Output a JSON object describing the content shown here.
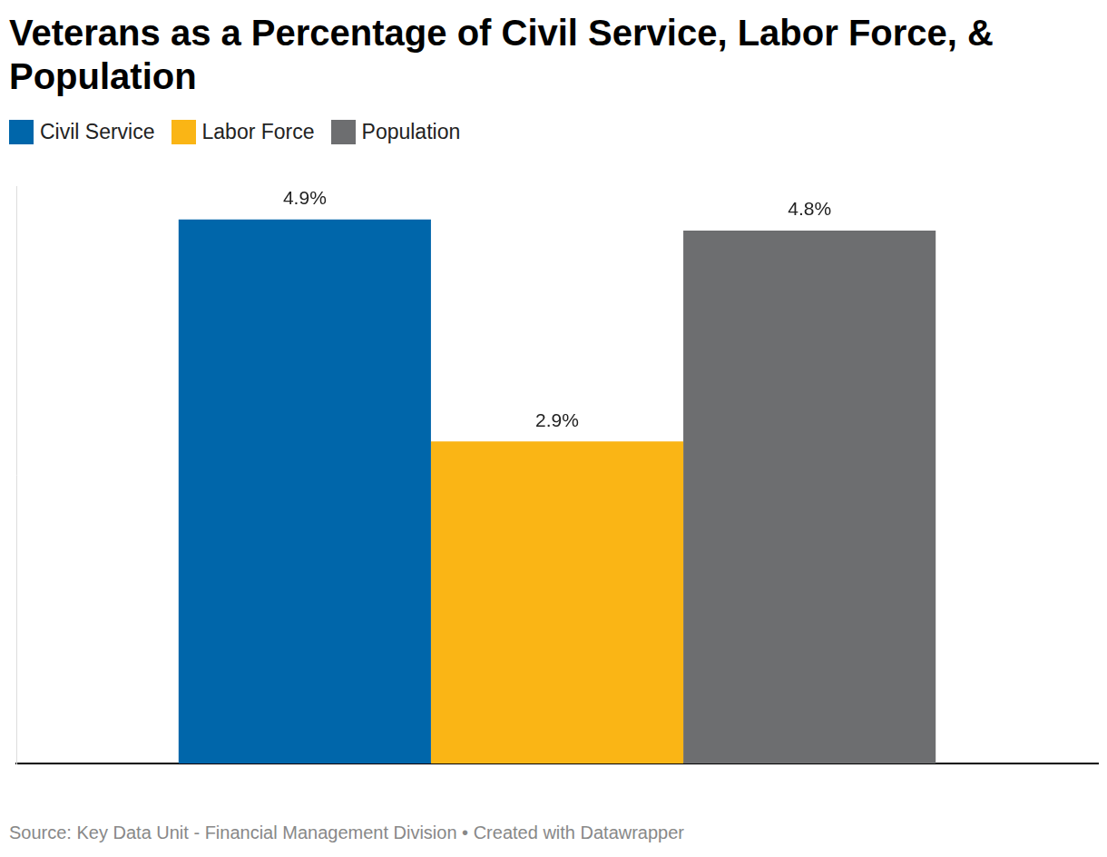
{
  "chart_data": {
    "type": "bar",
    "title": "Veterans as a Percentage of Civil Service, Labor Force, & Population",
    "categories": [
      null
    ],
    "series": [
      {
        "name": "Civil Service",
        "color": "#0066aa",
        "values": [
          4.9
        ],
        "value_labels": [
          "4.9%"
        ]
      },
      {
        "name": "Labor Force",
        "color": "#fab515",
        "values": [
          2.9
        ],
        "value_labels": [
          "2.9%"
        ]
      },
      {
        "name": "Population",
        "color": "#6d6e70",
        "values": [
          4.8
        ],
        "value_labels": [
          "4.8%"
        ]
      }
    ],
    "ylim": [
      0,
      5.2
    ],
    "grid": false,
    "legend": "top-left",
    "data_labels": true,
    "tick_labels": false,
    "source": "Source: Key Data Unit - Financial Management Division • Created with Datawrapper"
  }
}
